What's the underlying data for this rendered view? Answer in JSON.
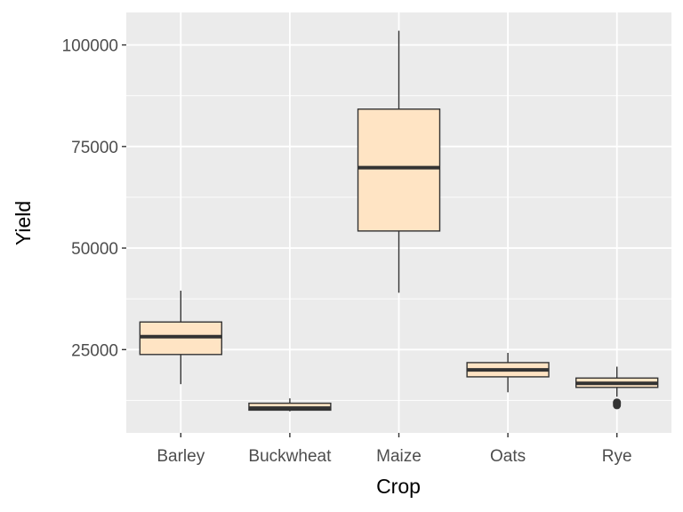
{
  "chart_data": {
    "type": "boxplot",
    "title": "",
    "xlabel": "Crop",
    "ylabel": "Yield",
    "ylim": [
      4500,
      108000
    ],
    "y_ticks": [
      25000,
      50000,
      75000,
      100000
    ],
    "y_tick_labels": [
      "25000",
      "50000",
      "75000",
      "100000"
    ],
    "grid": true,
    "legend": "none",
    "colors": {
      "panel_background": "#ebebeb",
      "grid": "#ffffff",
      "box_fill": "#ffe4c4",
      "box_stroke": "#333333",
      "median": "#333333",
      "whisker": "#333333",
      "outlier": "#333333"
    },
    "categories": [
      "Barley",
      "Buckwheat",
      "Maize",
      "Oats",
      "Rye"
    ],
    "boxes": [
      {
        "category": "Barley",
        "whisker_low": 16500,
        "q1": 23800,
        "median": 28200,
        "q3": 31800,
        "whisker_high": 39500,
        "outliers": []
      },
      {
        "category": "Buckwheat",
        "whisker_low": 9800,
        "q1": 10100,
        "median": 10600,
        "q3": 11800,
        "whisker_high": 13000,
        "outliers": []
      },
      {
        "category": "Maize",
        "whisker_low": 39000,
        "q1": 54200,
        "median": 69800,
        "q3": 84200,
        "whisker_high": 103500,
        "outliers": []
      },
      {
        "category": "Oats",
        "whisker_low": 14500,
        "q1": 18300,
        "median": 20000,
        "q3": 21800,
        "whisker_high": 24200,
        "outliers": []
      },
      {
        "category": "Rye",
        "whisker_low": 13400,
        "q1": 15700,
        "median": 16700,
        "q3": 18000,
        "whisker_high": 20800,
        "outliers": [
          11300,
          11700,
          12000
        ]
      }
    ]
  }
}
